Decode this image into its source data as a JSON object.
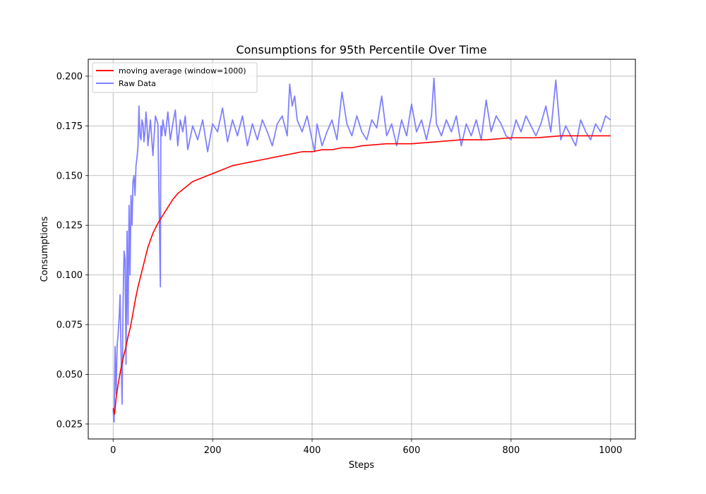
{
  "chart_data": {
    "type": "line",
    "title": "Consumptions for 95th Percentile Over Time",
    "xlabel": "Steps",
    "ylabel": "Consumptions",
    "xlim": [
      -50,
      1050
    ],
    "ylim": [
      0.0175,
      0.2085
    ],
    "xticks": [
      0,
      200,
      400,
      600,
      800,
      1000
    ],
    "yticks": [
      0.025,
      0.05,
      0.075,
      0.1,
      0.125,
      0.15,
      0.175,
      0.2
    ],
    "xtick_labels": [
      "0",
      "200",
      "400",
      "600",
      "800",
      "1000"
    ],
    "ytick_labels": [
      "0.025",
      "0.050",
      "0.075",
      "0.100",
      "0.125",
      "0.150",
      "0.175",
      "0.200"
    ],
    "grid": true,
    "legend_position": "top-left",
    "series": [
      {
        "name": "moving average (window=1000)",
        "color": "#ff0000",
        "x": [
          0,
          3,
          6,
          10,
          15,
          20,
          25,
          30,
          35,
          40,
          45,
          50,
          60,
          70,
          80,
          90,
          100,
          110,
          120,
          130,
          140,
          150,
          160,
          170,
          180,
          190,
          200,
          220,
          240,
          260,
          280,
          300,
          320,
          340,
          360,
          380,
          400,
          420,
          440,
          460,
          480,
          500,
          550,
          600,
          650,
          700,
          750,
          800,
          850,
          900,
          950,
          1000
        ],
        "y": [
          0.033,
          0.03,
          0.038,
          0.045,
          0.052,
          0.058,
          0.063,
          0.069,
          0.074,
          0.081,
          0.088,
          0.094,
          0.104,
          0.114,
          0.121,
          0.126,
          0.13,
          0.134,
          0.138,
          0.141,
          0.143,
          0.145,
          0.147,
          0.148,
          0.149,
          0.15,
          0.151,
          0.153,
          0.155,
          0.156,
          0.157,
          0.158,
          0.159,
          0.16,
          0.161,
          0.162,
          0.162,
          0.163,
          0.163,
          0.164,
          0.164,
          0.165,
          0.166,
          0.166,
          0.167,
          0.168,
          0.168,
          0.169,
          0.169,
          0.17,
          0.17,
          0.17
        ]
      },
      {
        "name": "Raw Data",
        "color": "#8080ff",
        "x": [
          0,
          2,
          4,
          6,
          8,
          10,
          12,
          14,
          16,
          18,
          20,
          22,
          24,
          26,
          28,
          30,
          32,
          34,
          36,
          38,
          40,
          42,
          44,
          46,
          48,
          50,
          52,
          54,
          56,
          58,
          60,
          62,
          64,
          66,
          68,
          70,
          75,
          80,
          85,
          90,
          95,
          96,
          98,
          100,
          105,
          110,
          115,
          120,
          125,
          130,
          135,
          140,
          145,
          150,
          160,
          170,
          180,
          190,
          200,
          210,
          220,
          230,
          240,
          250,
          260,
          270,
          280,
          290,
          300,
          310,
          320,
          330,
          340,
          350,
          355,
          360,
          365,
          370,
          380,
          390,
          400,
          405,
          410,
          420,
          430,
          440,
          450,
          460,
          470,
          480,
          490,
          500,
          510,
          520,
          530,
          540,
          550,
          560,
          570,
          580,
          590,
          600,
          610,
          620,
          630,
          640,
          645,
          650,
          660,
          670,
          680,
          690,
          700,
          710,
          720,
          730,
          740,
          750,
          760,
          770,
          780,
          790,
          800,
          810,
          820,
          830,
          840,
          850,
          860,
          870,
          880,
          890,
          900,
          910,
          920,
          930,
          940,
          950,
          960,
          970,
          980,
          990,
          1000
        ],
        "y": [
          0.032,
          0.026,
          0.064,
          0.04,
          0.064,
          0.07,
          0.078,
          0.09,
          0.06,
          0.035,
          0.085,
          0.112,
          0.108,
          0.055,
          0.122,
          0.075,
          0.135,
          0.1,
          0.14,
          0.125,
          0.147,
          0.15,
          0.14,
          0.155,
          0.159,
          0.165,
          0.185,
          0.17,
          0.168,
          0.178,
          0.176,
          0.167,
          0.172,
          0.182,
          0.176,
          0.165,
          0.178,
          0.16,
          0.18,
          0.176,
          0.094,
          0.175,
          0.17,
          0.178,
          0.17,
          0.182,
          0.168,
          0.176,
          0.183,
          0.165,
          0.178,
          0.172,
          0.18,
          0.163,
          0.175,
          0.168,
          0.178,
          0.162,
          0.176,
          0.172,
          0.184,
          0.167,
          0.178,
          0.17,
          0.18,
          0.165,
          0.176,
          0.168,
          0.178,
          0.172,
          0.165,
          0.176,
          0.18,
          0.17,
          0.196,
          0.185,
          0.19,
          0.178,
          0.172,
          0.18,
          0.168,
          0.162,
          0.176,
          0.165,
          0.172,
          0.178,
          0.168,
          0.192,
          0.176,
          0.17,
          0.18,
          0.172,
          0.168,
          0.178,
          0.174,
          0.19,
          0.17,
          0.176,
          0.165,
          0.178,
          0.17,
          0.186,
          0.172,
          0.178,
          0.168,
          0.18,
          0.199,
          0.176,
          0.17,
          0.178,
          0.172,
          0.18,
          0.165,
          0.176,
          0.17,
          0.178,
          0.168,
          0.188,
          0.172,
          0.18,
          0.176,
          0.17,
          0.168,
          0.178,
          0.172,
          0.18,
          0.175,
          0.17,
          0.176,
          0.185,
          0.172,
          0.198,
          0.168,
          0.175,
          0.17,
          0.165,
          0.178,
          0.172,
          0.168,
          0.176,
          0.172,
          0.18,
          0.178
        ]
      }
    ]
  }
}
